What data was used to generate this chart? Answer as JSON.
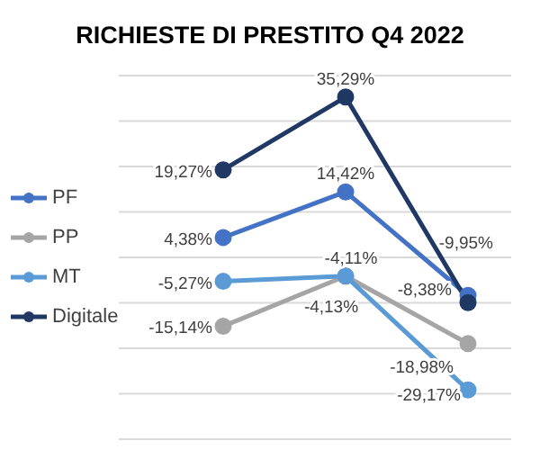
{
  "chart_data": {
    "type": "line",
    "title": "RICHIESTE DI PRESTITO Q4 2022",
    "categories": [
      null,
      null,
      null
    ],
    "series": [
      {
        "name": "PF",
        "color": "#4472c4",
        "values": [
          4.38,
          14.42,
          -8.38
        ],
        "value_labels": [
          "4,38%",
          "14,42%",
          "-8,38%"
        ]
      },
      {
        "name": "PP",
        "color": "#a5a5a5",
        "values": [
          -15.14,
          -4.11,
          -18.98
        ],
        "value_labels": [
          "-15,14%",
          "-4,11%",
          "-18,98%"
        ]
      },
      {
        "name": "MT",
        "color": "#5b9bd5",
        "values": [
          -5.27,
          -4.13,
          -29.17
        ],
        "value_labels": [
          "-5,27%",
          "-4,13%",
          "-29,17%"
        ]
      },
      {
        "name": "Digitale",
        "color": "#203864",
        "values": [
          19.27,
          35.29,
          -9.95
        ],
        "value_labels": [
          "19,27%",
          "35,29%",
          "-9,95%"
        ]
      }
    ],
    "ylim": [
      -40,
      40
    ],
    "yticks": [
      -40,
      -30,
      -20,
      -10,
      0,
      10,
      20,
      30,
      40
    ],
    "tick_labels": false,
    "grid": "y",
    "legend": "left",
    "marker": "circle",
    "line_style": "solid"
  }
}
